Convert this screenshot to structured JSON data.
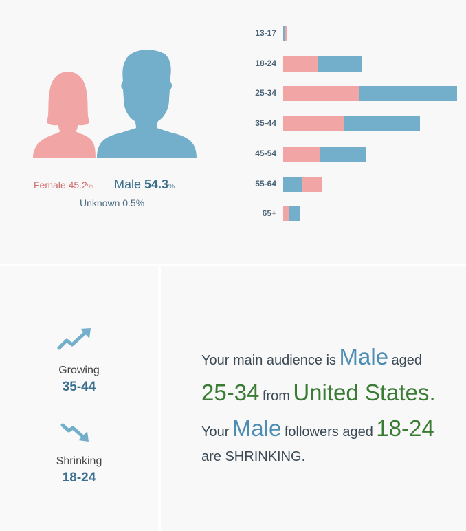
{
  "colors": {
    "female": "#f2a5a5",
    "male": "#73aecb",
    "female_text": "#cf6e6e",
    "male_text": "#3b6f8c",
    "accent_green": "#3b7c35",
    "accent_blue": "#4e8db3"
  },
  "gender": {
    "female_label": "Female",
    "female_value": "45.2",
    "male_label": "Male",
    "male_value": "54.3",
    "percent_sign": "%",
    "unknown_text": "Unknown 0.5%"
  },
  "chart_data": {
    "type": "bar",
    "orientation": "horizontal",
    "stacked": true,
    "categories": [
      "13-17",
      "18-24",
      "25-34",
      "35-44",
      "45-54",
      "55-64",
      "65+"
    ],
    "series": [
      {
        "name": "Female",
        "values": [
          0.5,
          8.0,
          17.5,
          14.0,
          8.5,
          4.5,
          1.5
        ],
        "color": "#f2a5a5"
      },
      {
        "name": "Male",
        "values": [
          0.5,
          10.0,
          22.5,
          17.5,
          10.5,
          4.5,
          2.5
        ],
        "color": "#73aecb"
      }
    ],
    "male_first_categories": [
      "13-17",
      "55-64"
    ],
    "xlim": [
      0,
      40
    ],
    "grid": false,
    "legend": "none"
  },
  "trends": {
    "growing_label": "Growing",
    "growing_range": "35-44",
    "shrinking_label": "Shrinking",
    "shrinking_range": "18-24"
  },
  "summary": {
    "l1_a": "Your main audience is",
    "l1_gender": "Male",
    "l1_b": "aged",
    "l2_age": "25-34",
    "l2_from": "from",
    "l2_country": "United States",
    "l2_dot": ".",
    "l3_a": "Your",
    "l3_gender": "Male",
    "l3_b": "followers aged",
    "l3_age": "18-24",
    "l4": "are SHRINKING."
  },
  "icons": {
    "growing": "trend-up-arrow-icon",
    "shrinking": "trend-down-arrow-icon",
    "female": "female-silhouette-icon",
    "male": "male-silhouette-icon"
  }
}
